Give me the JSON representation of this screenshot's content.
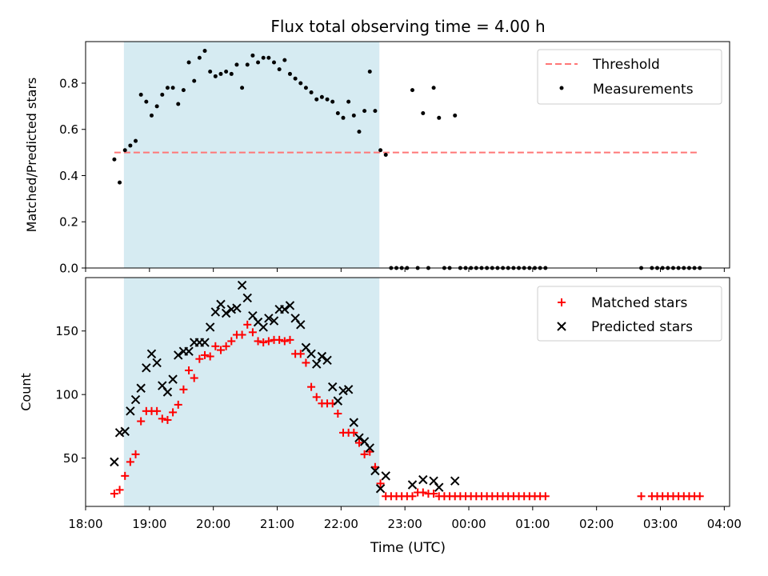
{
  "figure": {
    "title": "Flux total observing time = 4.00 h",
    "xlabel": "Time (UTC)",
    "x_tick_labels": [
      "18:00",
      "19:00",
      "20:00",
      "21:00",
      "22:00",
      "23:00",
      "00:00",
      "01:00",
      "02:00",
      "03:00",
      "04:00"
    ]
  },
  "colors": {
    "shaded": "#add8e6",
    "threshold": "#ff7777",
    "measurement": "#000000",
    "matched": "#ff0000",
    "predicted": "#000000"
  },
  "chart_data": [
    {
      "type": "scatter",
      "ylabel": "Matched/Predicted stars",
      "xlim": [
        "18:00",
        "04:05"
      ],
      "ylim": [
        0,
        0.98
      ],
      "yticks": [
        0.0,
        0.2,
        0.4,
        0.6,
        0.8
      ],
      "ytick_labels": [
        "0.0",
        "0.2",
        "0.4",
        "0.6",
        "0.8"
      ],
      "shaded_span": [
        "18:36",
        "22:36"
      ],
      "legend": {
        "position": "upper right",
        "entries": [
          "Threshold",
          "Measurements"
        ]
      },
      "threshold": {
        "name": "Threshold",
        "value": 0.5,
        "x": [
          "18:27",
          "03:37"
        ]
      },
      "series": [
        {
          "name": "Measurements",
          "x": [
            "18:27",
            "18:32",
            "18:37",
            "18:42",
            "18:47",
            "18:52",
            "18:57",
            "19:02",
            "19:07",
            "19:12",
            "19:17",
            "19:22",
            "19:27",
            "19:32",
            "19:37",
            "19:42",
            "19:47",
            "19:52",
            "19:57",
            "20:02",
            "20:07",
            "20:12",
            "20:17",
            "20:22",
            "20:27",
            "20:32",
            "20:37",
            "20:42",
            "20:47",
            "20:52",
            "20:57",
            "21:02",
            "21:07",
            "21:12",
            "21:17",
            "21:22",
            "21:27",
            "21:32",
            "21:37",
            "21:42",
            "21:47",
            "21:52",
            "21:57",
            "22:02",
            "22:07",
            "22:12",
            "22:17",
            "22:22",
            "22:27",
            "22:32",
            "22:37",
            "22:42",
            "22:47",
            "22:52",
            "22:57",
            "23:02",
            "23:07",
            "23:12",
            "23:17",
            "23:22",
            "23:27",
            "23:32",
            "23:37",
            "23:42",
            "23:47",
            "23:52",
            "23:57",
            "00:02",
            "00:07",
            "00:12",
            "00:17",
            "00:22",
            "00:27",
            "00:32",
            "00:37",
            "00:42",
            "00:47",
            "00:52",
            "00:57",
            "01:02",
            "01:07",
            "01:12",
            "02:42",
            "02:52",
            "02:57",
            "03:02",
            "03:07",
            "03:12",
            "03:17",
            "03:22",
            "03:27",
            "03:32",
            "03:37"
          ],
          "y": [
            0.47,
            0.37,
            0.51,
            0.53,
            0.55,
            0.75,
            0.72,
            0.66,
            0.7,
            0.75,
            0.78,
            0.78,
            0.71,
            0.77,
            0.89,
            0.81,
            0.91,
            0.94,
            0.85,
            0.83,
            0.84,
            0.85,
            0.84,
            0.88,
            0.78,
            0.88,
            0.92,
            0.89,
            0.91,
            0.91,
            0.89,
            0.86,
            0.9,
            0.84,
            0.82,
            0.8,
            0.78,
            0.76,
            0.73,
            0.74,
            0.73,
            0.72,
            0.67,
            0.65,
            0.72,
            0.66,
            0.59,
            0.68,
            0.85,
            0.68,
            0.51,
            0.49,
            0,
            0,
            0,
            0,
            0.77,
            0,
            0.67,
            0,
            0.78,
            0.65,
            0,
            0,
            0.66,
            0,
            0,
            0,
            0,
            0,
            0,
            0,
            0,
            0,
            0,
            0,
            0,
            0,
            0,
            0,
            0,
            0,
            0,
            0,
            0,
            0,
            0,
            0,
            0,
            0,
            0,
            0,
            0
          ]
        }
      ]
    },
    {
      "type": "scatter",
      "ylabel": "Count",
      "xlim": [
        "18:00",
        "04:05"
      ],
      "ylim": [
        12,
        192
      ],
      "yticks": [
        50,
        100,
        150
      ],
      "ytick_labels": [
        "50",
        "100",
        "150"
      ],
      "shaded_span": [
        "18:36",
        "22:36"
      ],
      "legend": {
        "position": "upper right",
        "entries": [
          "Matched stars",
          "Predicted stars"
        ]
      },
      "series": [
        {
          "name": "Matched stars",
          "marker": "+",
          "x": [
            "18:27",
            "18:32",
            "18:37",
            "18:42",
            "18:47",
            "18:52",
            "18:57",
            "19:02",
            "19:07",
            "19:12",
            "19:17",
            "19:22",
            "19:27",
            "19:32",
            "19:37",
            "19:42",
            "19:47",
            "19:52",
            "19:57",
            "20:02",
            "20:07",
            "20:12",
            "20:17",
            "20:22",
            "20:27",
            "20:32",
            "20:37",
            "20:42",
            "20:47",
            "20:52",
            "20:57",
            "21:02",
            "21:07",
            "21:12",
            "21:17",
            "21:22",
            "21:27",
            "21:32",
            "21:37",
            "21:42",
            "21:47",
            "21:52",
            "21:57",
            "22:02",
            "22:07",
            "22:12",
            "22:17",
            "22:22",
            "22:27",
            "22:32",
            "22:37",
            "22:42",
            "22:47",
            "22:52",
            "22:57",
            "23:02",
            "23:07",
            "23:12",
            "23:17",
            "23:22",
            "23:27",
            "23:32",
            "23:37",
            "23:42",
            "23:47",
            "23:52",
            "23:57",
            "00:02",
            "00:07",
            "00:12",
            "00:17",
            "00:22",
            "00:27",
            "00:32",
            "00:37",
            "00:42",
            "00:47",
            "00:52",
            "00:57",
            "01:02",
            "01:07",
            "01:12",
            "02:42",
            "02:52",
            "02:57",
            "03:02",
            "03:07",
            "03:12",
            "03:17",
            "03:22",
            "03:27",
            "03:32",
            "03:37"
          ],
          "y": [
            22,
            25,
            36,
            47,
            53,
            79,
            87,
            87,
            87,
            81,
            80,
            86,
            92,
            104,
            119,
            113,
            128,
            131,
            130,
            138,
            135,
            138,
            142,
            147,
            147,
            155,
            149,
            142,
            141,
            142,
            143,
            143,
            142,
            143,
            132,
            132,
            125,
            106,
            98,
            93,
            93,
            93,
            85,
            70,
            70,
            70,
            62,
            53,
            55,
            43,
            30,
            20,
            20,
            20,
            20,
            20,
            20,
            23,
            23,
            22,
            22,
            20,
            20,
            20,
            20,
            20,
            20,
            20,
            20,
            20,
            20,
            20,
            20,
            20,
            20,
            20,
            20,
            20,
            20,
            20,
            20,
            20,
            20,
            20,
            20,
            20,
            20,
            20,
            20,
            20,
            20,
            20,
            20
          ]
        },
        {
          "name": "Predicted stars",
          "marker": "x",
          "x": [
            "18:27",
            "18:32",
            "18:37",
            "18:42",
            "18:47",
            "18:52",
            "18:57",
            "19:02",
            "19:07",
            "19:12",
            "19:17",
            "19:22",
            "19:27",
            "19:32",
            "19:37",
            "19:42",
            "19:47",
            "19:52",
            "19:57",
            "20:02",
            "20:07",
            "20:12",
            "20:17",
            "20:22",
            "20:27",
            "20:32",
            "20:37",
            "20:42",
            "20:47",
            "20:52",
            "20:57",
            "21:02",
            "21:07",
            "21:12",
            "21:17",
            "21:22",
            "21:27",
            "21:32",
            "21:37",
            "21:42",
            "21:47",
            "21:52",
            "21:57",
            "22:02",
            "22:07",
            "22:12",
            "22:17",
            "22:22",
            "22:27",
            "22:32",
            "22:37",
            "22:42",
            "23:07",
            "23:17",
            "23:27",
            "23:32",
            "23:47"
          ],
          "y": [
            47,
            70,
            71,
            87,
            96,
            105,
            121,
            132,
            125,
            107,
            102,
            112,
            131,
            134,
            134,
            141,
            141,
            141,
            153,
            165,
            171,
            164,
            167,
            168,
            186,
            176,
            162,
            157,
            153,
            160,
            158,
            167,
            167,
            170,
            160,
            155,
            137,
            132,
            124,
            130,
            127,
            106,
            95,
            103,
            104,
            78,
            66,
            63,
            58,
            40,
            26,
            36,
            29,
            33,
            32,
            27,
            32
          ]
        }
      ]
    }
  ]
}
